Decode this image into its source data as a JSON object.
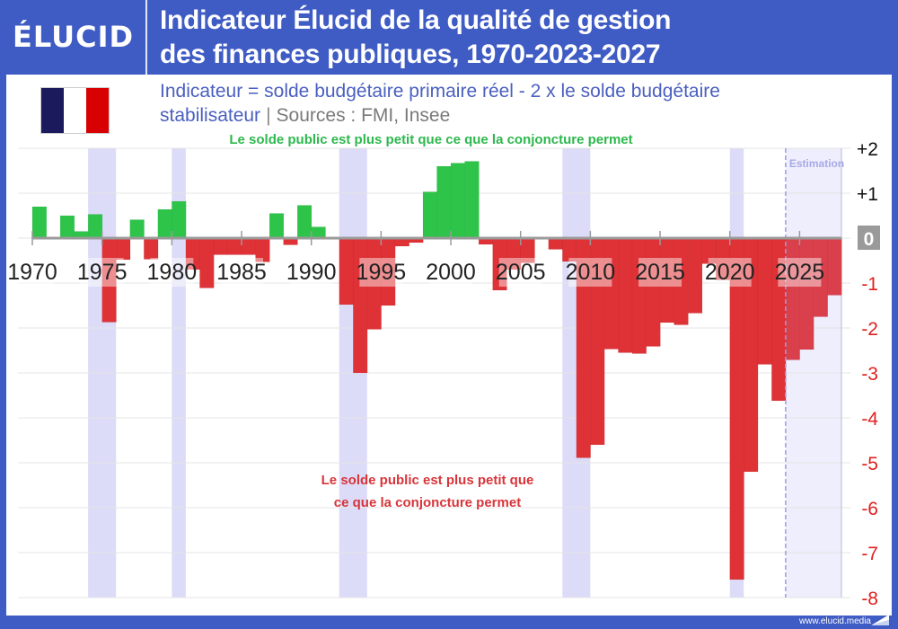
{
  "header": {
    "logo": "ÉLUCID",
    "title_line1": "Indicateur Élucid de la qualité de gestion",
    "title_line2": "des finances publiques, 1970-2023-2027"
  },
  "subtitle": {
    "line1": "Indicateur = solde budgétaire primaire réel - 2 x le solde budgétaire",
    "line2_a": "stabilisateur",
    "separator": "|",
    "sources": "Sources : FMI, Insee"
  },
  "flag": {
    "country": "France",
    "colors": [
      "#1a1a5c",
      "#ffffff",
      "#d80000"
    ]
  },
  "annotations": {
    "top": "Le solde public est plus petit que ce que la conjoncture permet",
    "bottom_line1": "Le solde public est plus petit que",
    "bottom_line2": "ce que la conjoncture permet",
    "estimation": "Estimation"
  },
  "footer": {
    "url": "www.elucid.media"
  },
  "colors": {
    "brand_blue": "#3f5bc4",
    "positive": "#2ec44a",
    "negative": "#de3236",
    "forecast_negative": "#d9404c",
    "recession_band": "#dcdcf8",
    "estimation_band": "#eeeefc",
    "grid": "#e4e4e4"
  },
  "chart_data": {
    "type": "bar",
    "title": "Indicateur Élucid de la qualité de gestion des finances publiques, 1970-2023-2027",
    "subtitle": "Indicateur = solde budgétaire primaire réel - 2 x le solde budgétaire stabilisateur | Sources : FMI, Insee",
    "xlabel": "",
    "ylabel": "",
    "ylim": [
      -8,
      2
    ],
    "yticks": [
      "+2",
      "+1",
      "0",
      "-1",
      "-2",
      "-3",
      "-4",
      "-5",
      "-6",
      "-7",
      "-8"
    ],
    "ytick_values": [
      2,
      1,
      0,
      -1,
      -2,
      -3,
      -4,
      -5,
      -6,
      -7,
      -8
    ],
    "xtick_labels": [
      "1970",
      "1975",
      "1980",
      "1985",
      "1990",
      "1995",
      "2000",
      "2005",
      "2010",
      "2015",
      "2020",
      "2025"
    ],
    "grid": true,
    "legend": null,
    "categories": [
      1970,
      1971,
      1972,
      1973,
      1974,
      1975,
      1976,
      1977,
      1978,
      1979,
      1980,
      1981,
      1982,
      1983,
      1984,
      1985,
      1986,
      1987,
      1988,
      1989,
      1990,
      1991,
      1992,
      1993,
      1994,
      1995,
      1996,
      1997,
      1998,
      1999,
      2000,
      2001,
      2002,
      2003,
      2004,
      2005,
      2006,
      2007,
      2008,
      2009,
      2010,
      2011,
      2012,
      2013,
      2014,
      2015,
      2016,
      2017,
      2018,
      2019,
      2020,
      2021,
      2022,
      2023,
      2024,
      2025,
      2026,
      2027
    ],
    "values": [
      0.7,
      0,
      0.5,
      0.15,
      0.53,
      -1.87,
      -0.48,
      0.41,
      -0.47,
      0.64,
      0.82,
      -0.7,
      -1.11,
      -0.37,
      -0.37,
      -0.37,
      -0.53,
      0.55,
      -0.15,
      0.73,
      0.25,
      0,
      -1.48,
      -3.0,
      -2.03,
      -1.5,
      -0.18,
      -0.1,
      1.03,
      1.6,
      1.67,
      1.71,
      -0.14,
      -1.16,
      -0.7,
      -0.55,
      0,
      -0.25,
      -0.52,
      -4.89,
      -4.6,
      -2.47,
      -2.55,
      -2.57,
      -2.41,
      -1.88,
      -1.93,
      -1.67,
      -0.57,
      -0.93,
      -7.6,
      -5.2,
      -2.81,
      -3.62,
      -2.71,
      -2.48,
      -1.75,
      -1.27
    ],
    "forecast_from": 2024,
    "recession_bands": [
      [
        1974,
        1975
      ],
      [
        1980,
        1980
      ],
      [
        1992,
        1993
      ],
      [
        2008,
        2009
      ],
      [
        2020,
        2020
      ]
    ],
    "annotations": [
      "Le solde public est plus petit que ce que la conjoncture permet",
      "Le solde public est plus petit que ce que la conjoncture permet",
      "Estimation"
    ]
  }
}
